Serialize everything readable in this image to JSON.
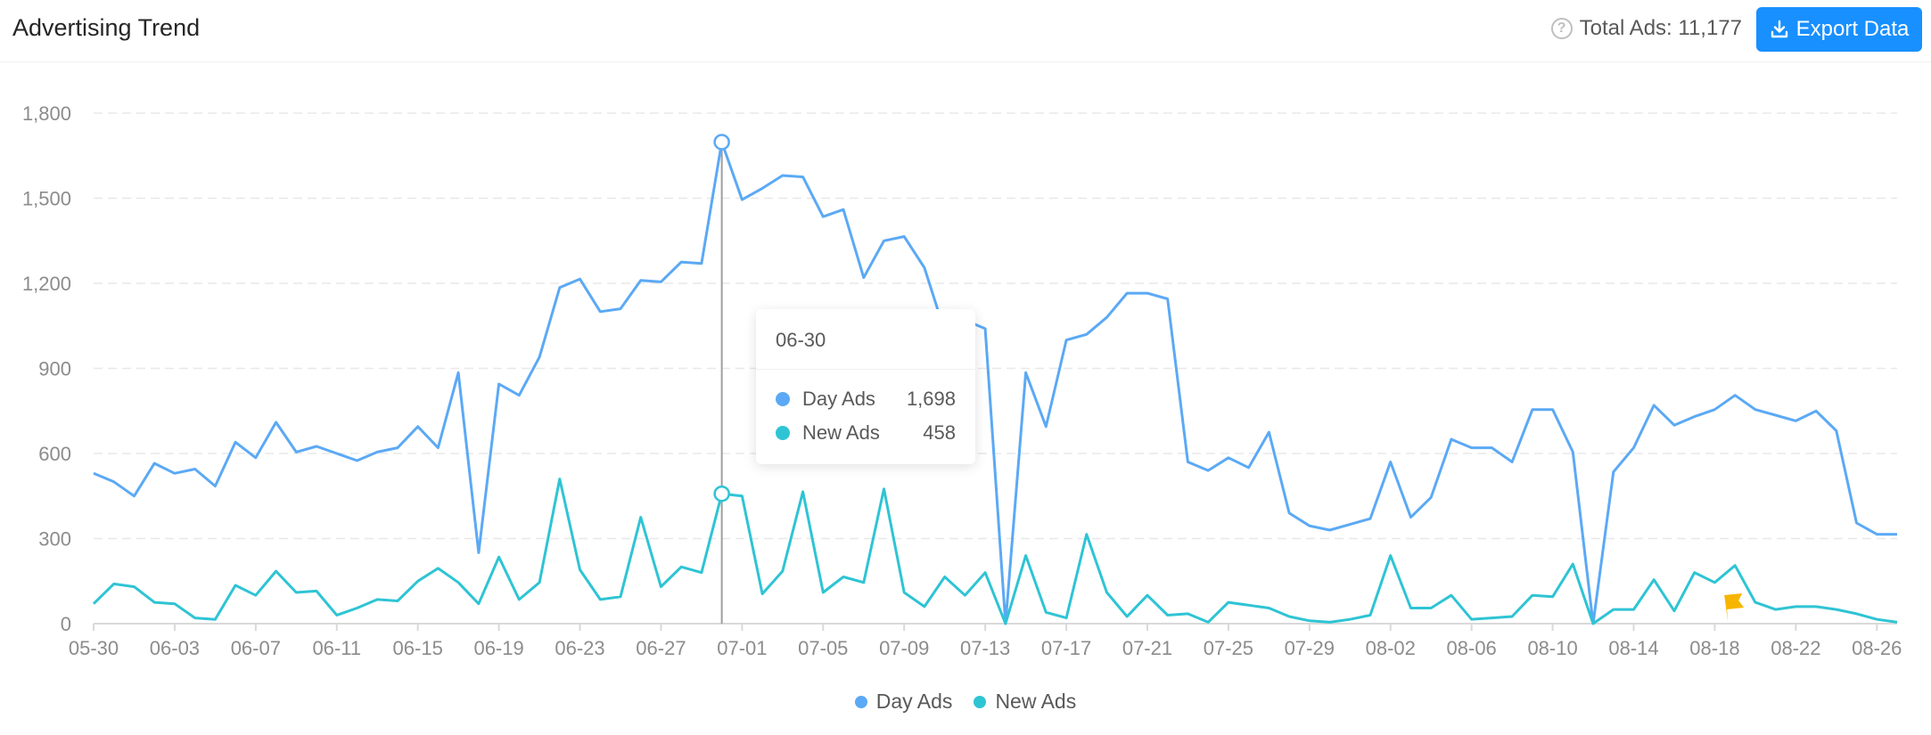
{
  "header": {
    "title": "Advertising Trend",
    "total_label": "Total Ads: 11,177",
    "export_label": "Export Data"
  },
  "colors": {
    "day_ads": "#5ba9f5",
    "new_ads": "#2ec4d4",
    "accent": "#1890ff",
    "flag": "#f7b500"
  },
  "tooltip": {
    "date": "06-30",
    "rows": [
      {
        "name": "Day Ads",
        "value": "1,698"
      },
      {
        "name": "New Ads",
        "value": "458"
      }
    ]
  },
  "legend": [
    {
      "name": "Day Ads"
    },
    {
      "name": "New Ads"
    }
  ],
  "chart_data": {
    "type": "line",
    "title": "Advertising Trend",
    "x_start": "05-30",
    "x_end": "08-27",
    "tick_labels": [
      "05-30",
      "06-03",
      "06-07",
      "06-11",
      "06-15",
      "06-19",
      "06-23",
      "06-27",
      "07-01",
      "07-05",
      "07-09",
      "07-13",
      "07-17",
      "07-21",
      "07-25",
      "07-29",
      "08-02",
      "08-06",
      "08-10",
      "08-14",
      "08-18",
      "08-22",
      "08-26"
    ],
    "ylim": [
      0,
      1800
    ],
    "yticks": [
      0,
      300,
      600,
      900,
      1200,
      1500,
      1800
    ],
    "grid": true,
    "legend_position": "bottom",
    "highlight": {
      "date": "06-30",
      "series_values": [
        1698,
        458
      ]
    },
    "flag_date": "08-19",
    "series": [
      {
        "name": "Day Ads",
        "values": [
          530,
          500,
          450,
          565,
          530,
          545,
          485,
          640,
          585,
          710,
          605,
          625,
          600,
          575,
          605,
          620,
          695,
          620,
          885,
          250,
          845,
          805,
          940,
          1185,
          1215,
          1100,
          1110,
          1210,
          1205,
          1275,
          1270,
          1698,
          1495,
          1535,
          1580,
          1575,
          1435,
          1460,
          1220,
          1350,
          1365,
          1255,
          1030,
          1070,
          1040,
          0,
          885,
          695,
          1000,
          1020,
          1080,
          1165,
          1165,
          1145,
          570,
          540,
          585,
          550,
          675,
          390,
          345,
          330,
          350,
          370,
          570,
          375,
          445,
          650,
          620,
          620,
          570,
          755,
          755,
          605,
          0,
          535,
          620,
          770,
          700,
          730,
          755,
          805,
          755,
          735,
          715,
          750,
          680,
          355,
          315,
          315
        ]
      },
      {
        "name": "New Ads",
        "values": [
          70,
          140,
          130,
          75,
          70,
          20,
          15,
          135,
          100,
          185,
          110,
          115,
          30,
          55,
          85,
          80,
          150,
          195,
          145,
          70,
          235,
          85,
          145,
          510,
          190,
          85,
          95,
          375,
          130,
          200,
          180,
          458,
          450,
          105,
          185,
          465,
          110,
          165,
          145,
          475,
          110,
          60,
          165,
          100,
          180,
          0,
          240,
          40,
          20,
          315,
          110,
          25,
          100,
          30,
          35,
          5,
          75,
          65,
          55,
          25,
          10,
          5,
          15,
          30,
          240,
          55,
          55,
          100,
          15,
          20,
          25,
          100,
          95,
          210,
          0,
          50,
          50,
          155,
          45,
          180,
          145,
          205,
          75,
          50,
          60,
          60,
          50,
          35,
          15,
          5
        ]
      }
    ]
  }
}
